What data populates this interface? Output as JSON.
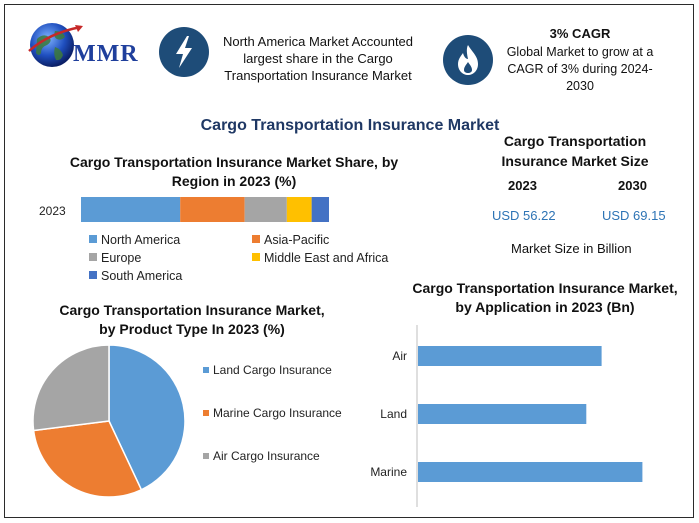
{
  "brand": {
    "logo_text": "MMR"
  },
  "header": {
    "north_america_text": "North America Market Accounted largest share in the Cargo Transportation Insurance Market",
    "cagr_title": "3% CAGR",
    "cagr_text": "Global Market to grow at a CAGR of 3% during 2024-2030"
  },
  "main_title": "Cargo Transportation Insurance Market",
  "market_size": {
    "title_line1": "Cargo Transportation",
    "title_line2": "Insurance Market Size",
    "year1": "2023",
    "year2": "2030",
    "value1": "USD 56.22",
    "value2": "USD 69.15",
    "note": "Market Size in Billion"
  },
  "colors": {
    "north_america": "#5b9bd5",
    "asia_pacific": "#ed7d31",
    "europe": "#a5a5a5",
    "middle_east_africa": "#ffc000",
    "south_america": "#4472c4",
    "bar_app": "#5b9bd5"
  },
  "chart_data": [
    {
      "type": "bar",
      "orientation": "horizontal-stacked",
      "title": "Cargo Transportation Insurance Market Share, by Region in 2023 (%)",
      "categories": [
        "2023"
      ],
      "series": [
        {
          "name": "North America",
          "values": [
            40
          ],
          "color": "#5b9bd5"
        },
        {
          "name": "Asia-Pacific",
          "values": [
            26
          ],
          "color": "#ed7d31"
        },
        {
          "name": "Europe",
          "values": [
            17
          ],
          "color": "#a5a5a5"
        },
        {
          "name": "Middle East and Africa",
          "values": [
            10
          ],
          "color": "#ffc000"
        },
        {
          "name": "South America",
          "values": [
            7
          ],
          "color": "#4472c4"
        }
      ],
      "legend": "bottom"
    },
    {
      "type": "pie",
      "title": "Cargo Transportation Insurance Market, by Product Type In 2023 (%)",
      "labels": [
        "Land Cargo Insurance",
        "Marine Cargo Insurance",
        "Air Cargo Insurance"
      ],
      "values": [
        43,
        30,
        27
      ],
      "colors": [
        "#5b9bd5",
        "#ed7d31",
        "#a5a5a5"
      ],
      "legend": "right"
    },
    {
      "type": "bar",
      "orientation": "horizontal",
      "title": "Cargo Transportation Insurance Market, by Application in 2023 (Bn)",
      "categories": [
        "Air",
        "Land",
        "Marine"
      ],
      "values": [
        18,
        16.5,
        22
      ],
      "xlim": [
        0,
        25
      ],
      "color": "#5b9bd5"
    }
  ]
}
